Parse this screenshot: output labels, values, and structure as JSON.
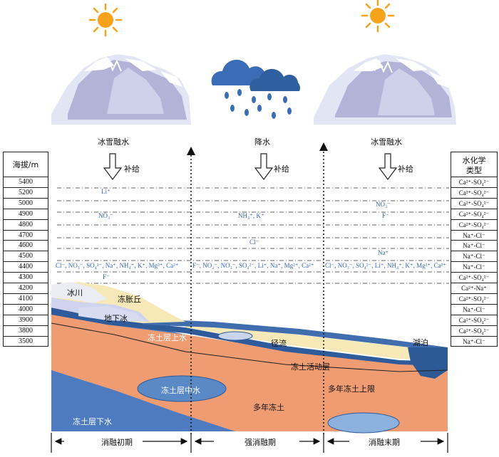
{
  "sources": {
    "left": "冰雪融水",
    "middle": "降水",
    "right": "冰雪融水",
    "recharge": "补给"
  },
  "elevation": {
    "header": "海拔/m",
    "values": [
      "5400",
      "5200",
      "5000",
      "4900",
      "4800",
      "4700",
      "4600",
      "4500",
      "4400",
      "4300",
      "4200",
      "4100",
      "4000",
      "3900",
      "3800",
      "3500"
    ]
  },
  "hydro": {
    "header_line1": "水化学",
    "header_line2": "类型",
    "values": [
      "Ca²⁺-SO₄²⁻",
      "Ca²⁺-SO₄²⁻",
      "Ca²⁺-SO₄²⁻",
      "Ca²⁺-SO₄²⁻",
      "Ca²⁺-SO₄²⁻",
      "Na⁺-Cl⁻",
      "Na⁺-Cl⁻",
      "Na⁺-Cl⁻",
      "Na⁺-Cl⁻",
      "Ca²⁺-SO₄²⁻",
      "Ca²⁺-Na⁺",
      "Ca²⁺-SO₄²⁻",
      "Na⁺-Cl⁻",
      "Ca²⁺-SO₄²⁻",
      "Ca²⁺-SO₄²⁻",
      "Na⁺-Cl⁻"
    ]
  },
  "ions": {
    "li": "Li⁺",
    "no3_left": "NO₃⁻",
    "nh4_k": "NH₄⁺, K⁺",
    "no3_right": "NO₃⁻",
    "f_right": "F⁻",
    "cl_mid": "Cl⁻",
    "na_right": "Na⁺",
    "f_left": "F⁻",
    "row_left": "Cl⁻, NO₃⁻, SO₄²⁻, Na⁺, NH₄⁺, K⁺, Mg²⁺, Ca²⁺",
    "row_mid": "F⁻, NO₂⁻, NO₃⁻, SO₄²⁻, Li⁺, Na⁺, Mg²⁺, Ca²⁺",
    "row_right": "Cl⁻, NO₃⁻, SO₄²⁻, Li⁺, NH₄⁺, K⁺, Mg²⁺, Ca²⁺"
  },
  "cross_section": {
    "glacier": "冰川",
    "moraine": "冻胀丘",
    "ground_ice": "地下冰",
    "suprapermafrost_water": "冻土层上水",
    "runoff": "径流",
    "active_layer": "冻土活动层",
    "lake": "湖泊",
    "permafrost_table": "多年冻土上限",
    "intrapermafrost_water": "冻土层中水",
    "permafrost": "多年冻土",
    "subpermafrost_water": "冻土层下水"
  },
  "periods": {
    "early": "消融初期",
    "strong": "强消融期",
    "late": "消融末期"
  }
}
